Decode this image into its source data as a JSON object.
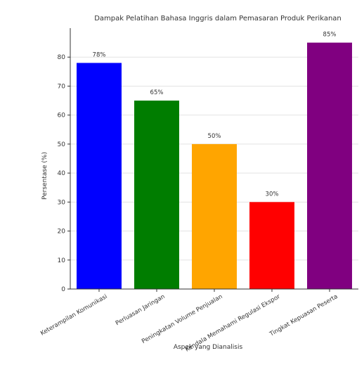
{
  "chart_data": {
    "type": "bar",
    "title": "Dampak Pelatihan Bahasa Inggris dalam Pemasaran Produk Perikanan",
    "xlabel": "Aspek yang Dianalisis",
    "ylabel": "Persentase (%)",
    "ylim": [
      0,
      90
    ],
    "yticks": [
      0,
      10,
      20,
      30,
      40,
      50,
      60,
      70,
      80
    ],
    "categories": [
      "Keterampilan Komunikasi",
      "Perluasan Jaringan",
      "Peningkatan Volume Penjualan",
      "Kendala Memahami Regulasi Ekspor",
      "Tingkat Kepuasan Peserta"
    ],
    "values": [
      78,
      65,
      50,
      30,
      85
    ],
    "value_labels": [
      "78%",
      "65%",
      "50%",
      "30%",
      "85%"
    ],
    "colors": [
      "#0000ff",
      "#007d00",
      "#ffa500",
      "#ff0000",
      "#800080"
    ],
    "grid": true,
    "legend": "none"
  }
}
